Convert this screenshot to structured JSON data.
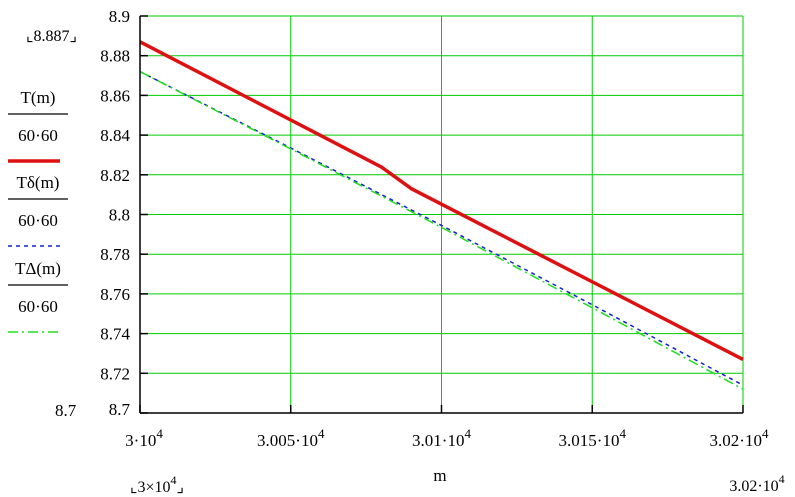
{
  "chart_data": {
    "type": "line",
    "title": "",
    "xlabel": "m",
    "ylabel": "",
    "xlim": [
      30000,
      30200
    ],
    "ylim": [
      8.7,
      8.9
    ],
    "grid": true,
    "grid_color": "#00cc00",
    "x_ticks": [
      {
        "value": 30000,
        "mant": "3",
        "exp": "4"
      },
      {
        "value": 30050,
        "mant": "3.005",
        "exp": "4"
      },
      {
        "value": 30100,
        "mant": "3.01",
        "exp": "4"
      },
      {
        "value": 30150,
        "mant": "3.015",
        "exp": "4"
      },
      {
        "value": 30200,
        "mant": "3.02",
        "exp": "4"
      }
    ],
    "y_ticks": [
      "8.7",
      "8.72",
      "8.74",
      "8.76",
      "8.78",
      "8.8",
      "8.82",
      "8.84",
      "8.86",
      "8.88",
      "8.9"
    ],
    "y_ticks_values": [
      8.7,
      8.72,
      8.74,
      8.76,
      8.78,
      8.8,
      8.82,
      8.84,
      8.86,
      8.88,
      8.9
    ],
    "y_limit_labels": {
      "top": "8.887",
      "bottom": "8.7"
    },
    "x_limit_labels": {
      "left_mant": "3",
      "left_exp": "4",
      "right_mant": "3.02",
      "right_exp": "4"
    },
    "legend_placement": "left",
    "series": [
      {
        "name_top": "T(m)",
        "name_bottom": "60·60",
        "color": "#dd1111",
        "dash": "solid",
        "x": [
          30000,
          30080,
          30090,
          30200
        ],
        "y": [
          8.887,
          8.824,
          8.813,
          8.727
        ]
      },
      {
        "name_top": "Tδ(m)",
        "name_bottom": "60·60",
        "color": "#1122cc",
        "dash": "dashed",
        "x": [
          30000,
          30050,
          30100,
          30150,
          30200
        ],
        "y": [
          8.872,
          8.8335,
          8.7945,
          8.7545,
          8.714
        ]
      },
      {
        "name_top": "TΔ(m)",
        "name_bottom": "60·60",
        "color": "#22dd22",
        "dash": "dashdot",
        "x": [
          30000,
          30050,
          30100,
          30150,
          30200
        ],
        "y": [
          8.872,
          8.833,
          8.7935,
          8.753,
          8.712
        ]
      }
    ]
  }
}
